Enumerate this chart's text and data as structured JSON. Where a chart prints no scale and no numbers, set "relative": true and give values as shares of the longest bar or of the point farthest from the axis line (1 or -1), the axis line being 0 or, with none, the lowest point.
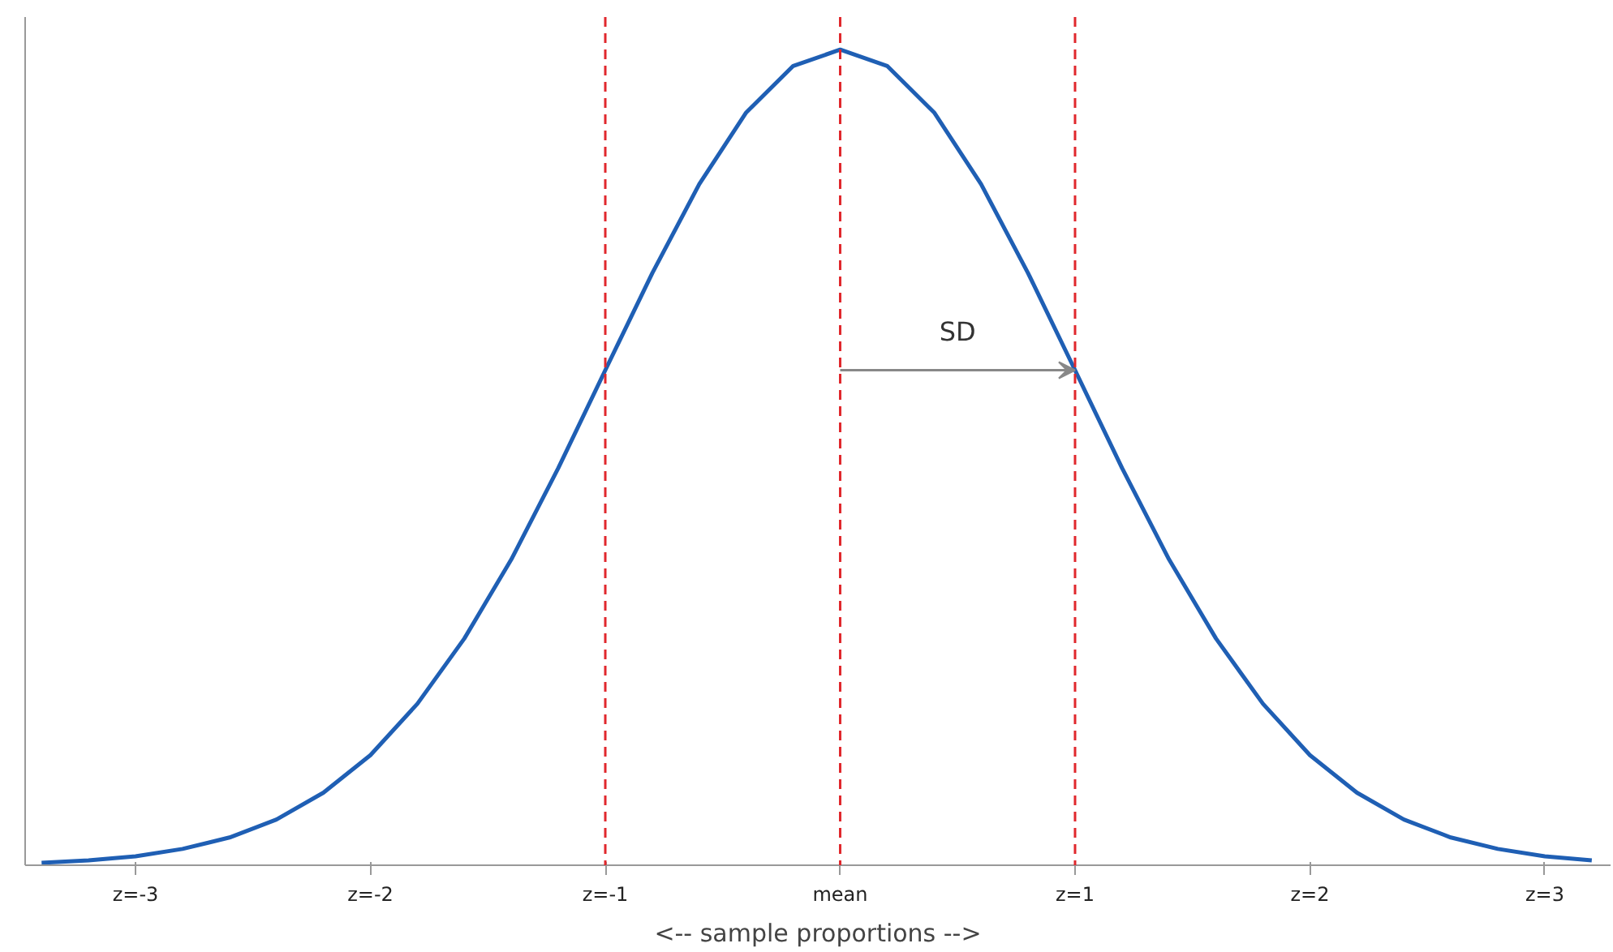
{
  "chart_data": {
    "type": "line",
    "relative": true,
    "xlabel": "<-- sample proportions -->",
    "x": [
      -3.4,
      -3.2,
      -3.0,
      -2.8,
      -2.6,
      -2.4,
      -2.2,
      -2.0,
      -1.8,
      -1.6,
      -1.4,
      -1.2,
      -1.0,
      -0.8,
      -0.6,
      -0.4,
      -0.2,
      0,
      0.2,
      0.4,
      0.6,
      0.8,
      1.0,
      1.2,
      1.4,
      1.6,
      1.8,
      2.0,
      2.2,
      2.4,
      2.6,
      2.8,
      3.0,
      3.2
    ],
    "series": [
      {
        "color": "#1f5fb4",
        "values": [
          0.003,
          0.006,
          0.011,
          0.02,
          0.034,
          0.056,
          0.089,
          0.135,
          0.198,
          0.278,
          0.375,
          0.487,
          0.607,
          0.726,
          0.835,
          0.923,
          0.98,
          1,
          0.98,
          0.923,
          0.835,
          0.726,
          0.607,
          0.487,
          0.375,
          0.278,
          0.198,
          0.135,
          0.089,
          0.056,
          0.034,
          0.02,
          0.011,
          0.006
        ]
      }
    ],
    "xlim": [
      -3.47,
      3.28
    ],
    "xticks": [
      {
        "value": -3,
        "label": "z=-3"
      },
      {
        "value": -2,
        "label": "z=-2"
      },
      {
        "value": -1,
        "label": "z=-1"
      },
      {
        "value": 0,
        "label": "mean"
      },
      {
        "value": 1,
        "label": "z=1"
      },
      {
        "value": 2,
        "label": "z=2"
      },
      {
        "value": 3,
        "label": "z=3"
      }
    ],
    "tick_labels": "x",
    "ref_lines": [
      {
        "axis": "x",
        "value": -1,
        "color": "#e0282d",
        "line_style": "dashed"
      },
      {
        "axis": "x",
        "value": 0,
        "color": "#e0282d",
        "line_style": "dashed"
      },
      {
        "axis": "x",
        "value": 1,
        "color": "#e0282d",
        "line_style": "dashed"
      }
    ],
    "annotations": [
      "SD"
    ],
    "grid": false,
    "marker": "none",
    "line_style": "solid"
  }
}
